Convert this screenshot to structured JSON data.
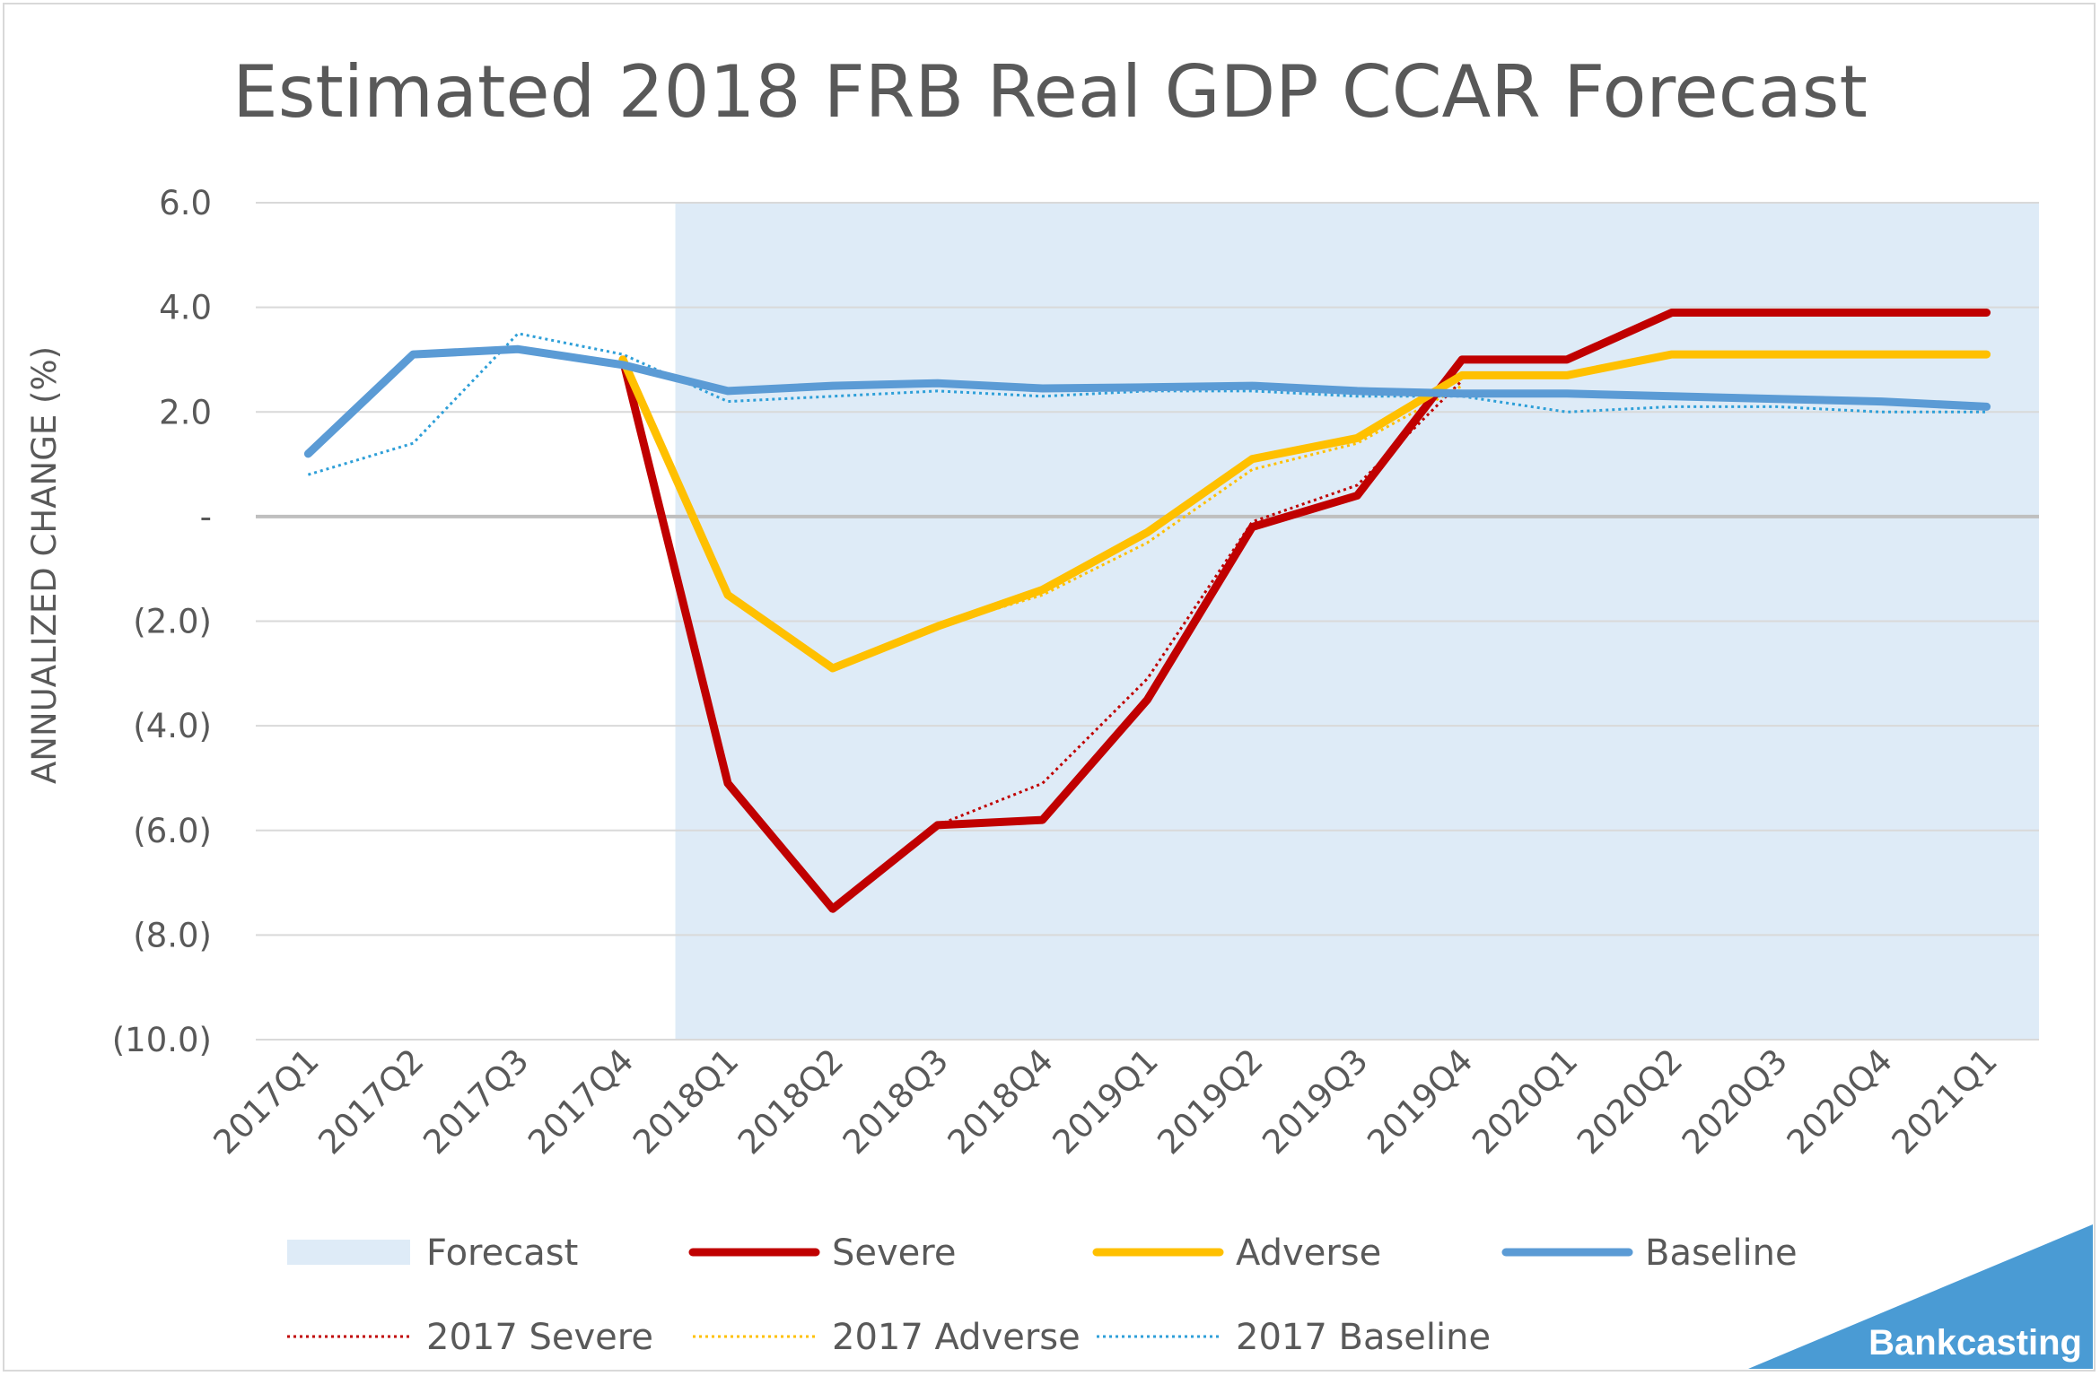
{
  "chart_data": {
    "type": "line",
    "title": "Estimated 2018 FRB Real GDP CCAR Forecast",
    "xlabel": "",
    "ylabel": "ANNUALIZED CHANGE (%)",
    "ylim": [
      -10,
      6
    ],
    "yticks": [
      6,
      4,
      2,
      0,
      -2,
      -4,
      -6,
      -8,
      -10
    ],
    "ytick_labels": [
      "6.0",
      "4.0",
      "2.0",
      "-",
      "(2.0)",
      "(4.0)",
      "(6.0)",
      "(8.0)",
      "(10.0)"
    ],
    "categories": [
      "2017Q1",
      "2017Q2",
      "2017Q3",
      "2017Q4",
      "2018Q1",
      "2018Q2",
      "2018Q3",
      "2018Q4",
      "2019Q1",
      "2019Q2",
      "2019Q3",
      "2019Q4",
      "2020Q1",
      "2020Q2",
      "2020Q3",
      "2020Q4",
      "2021Q1"
    ],
    "forecast_region": {
      "name": "Forecast",
      "from": "2018Q1",
      "to": "2021Q1",
      "color": "#deebf7"
    },
    "grid": true,
    "legend_position": "bottom",
    "series": [
      {
        "name": "Severe",
        "style": "solid",
        "color": "#c00000",
        "values": [
          null,
          null,
          null,
          3.0,
          -5.1,
          -7.5,
          -5.9,
          -5.8,
          -3.5,
          -0.2,
          0.4,
          3.0,
          3.0,
          3.9,
          3.9,
          3.9,
          3.9
        ]
      },
      {
        "name": "Adverse",
        "style": "solid",
        "color": "#ffc000",
        "values": [
          null,
          null,
          null,
          3.0,
          -1.5,
          -2.9,
          -2.1,
          -1.4,
          -0.3,
          1.1,
          1.5,
          2.7,
          2.7,
          3.1,
          3.1,
          3.1,
          3.1
        ]
      },
      {
        "name": "Baseline",
        "style": "solid",
        "color": "#5b9bd5",
        "values": [
          1.2,
          3.1,
          3.2,
          2.9,
          2.4,
          2.5,
          2.55,
          2.45,
          2.47,
          2.5,
          2.4,
          2.35,
          2.35,
          2.3,
          2.25,
          2.2,
          2.1
        ]
      },
      {
        "name": "2017 Severe",
        "style": "dotted",
        "color": "#c00000",
        "values": [
          null,
          null,
          null,
          null,
          null,
          null,
          -5.9,
          -5.1,
          -3.1,
          -0.1,
          0.6,
          2.6,
          null,
          null,
          null,
          null,
          null
        ]
      },
      {
        "name": "2017 Adverse",
        "style": "dotted",
        "color": "#ffc000",
        "values": [
          null,
          null,
          null,
          null,
          null,
          null,
          -2.1,
          -1.5,
          -0.5,
          0.9,
          1.4,
          2.5,
          null,
          null,
          null,
          null,
          null
        ]
      },
      {
        "name": "2017 Baseline",
        "style": "dotted",
        "color": "#2e9fd8",
        "values": [
          0.8,
          1.4,
          3.5,
          3.1,
          2.2,
          2.3,
          2.4,
          2.3,
          2.4,
          2.4,
          2.3,
          2.3,
          2.0,
          2.1,
          2.1,
          2.0,
          2.0
        ]
      }
    ],
    "legend": [
      "Forecast",
      "Severe",
      "Adverse",
      "Baseline",
      "2017 Severe",
      "2017 Adverse",
      "2017 Baseline"
    ]
  },
  "brand": {
    "text": "Bankcasting",
    "color": "#4a9bd4"
  },
  "colors": {
    "grid": "#d9d9d9",
    "zero_line": "#bfbfbf",
    "text": "#595959"
  }
}
